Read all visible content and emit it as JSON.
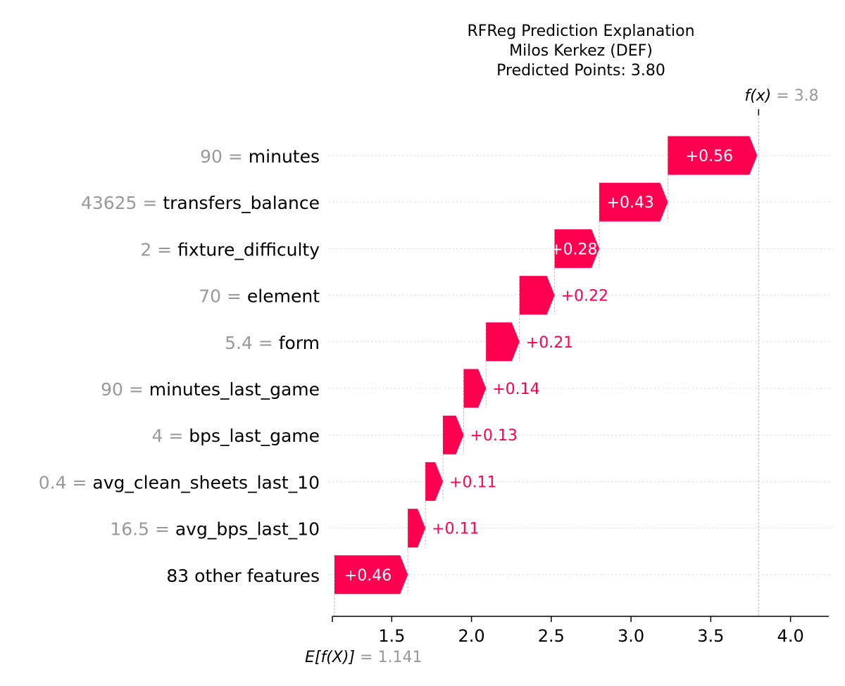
{
  "chart_data": {
    "type": "waterfall",
    "title_lines": [
      "RFReg Prediction Explanation",
      "Milos Kerkez (DEF)",
      "Predicted Points: 3.80"
    ],
    "base_value": 1.141,
    "base_label": "E[f(X)]",
    "base_value_text": "= 1.141",
    "output_value": 3.8,
    "output_label": "f(x)",
    "output_value_text": "= 3.8",
    "features": [
      {
        "value": "90",
        "name": "minutes",
        "contribution": 0.56,
        "label": "+0.56"
      },
      {
        "value": "43625",
        "name": "transfers_balance",
        "contribution": 0.43,
        "label": "+0.43"
      },
      {
        "value": "2",
        "name": "fixture_difficulty",
        "contribution": 0.28,
        "label": "+0.28"
      },
      {
        "value": "70",
        "name": "element",
        "contribution": 0.22,
        "label": "+0.22"
      },
      {
        "value": "5.4",
        "name": "form",
        "contribution": 0.21,
        "label": "+0.21"
      },
      {
        "value": "90",
        "name": "minutes_last_game",
        "contribution": 0.14,
        "label": "+0.14"
      },
      {
        "value": "4",
        "name": "bps_last_game",
        "contribution": 0.13,
        "label": "+0.13"
      },
      {
        "value": "0.4",
        "name": "avg_clean_sheets_last_10",
        "contribution": 0.11,
        "label": "+0.11"
      },
      {
        "value": "16.5",
        "name": "avg_bps_last_10",
        "contribution": 0.11,
        "label": "+0.11"
      },
      {
        "value": "",
        "name": "83 other features",
        "contribution": 0.46,
        "label": "+0.46"
      }
    ],
    "x_ticks": [
      "1.5",
      "2.0",
      "2.5",
      "3.0",
      "3.5",
      "4.0"
    ],
    "x_range": [
      1.141,
      4.24
    ],
    "positive_color": "#ff0051",
    "muted_color": "#999999"
  }
}
